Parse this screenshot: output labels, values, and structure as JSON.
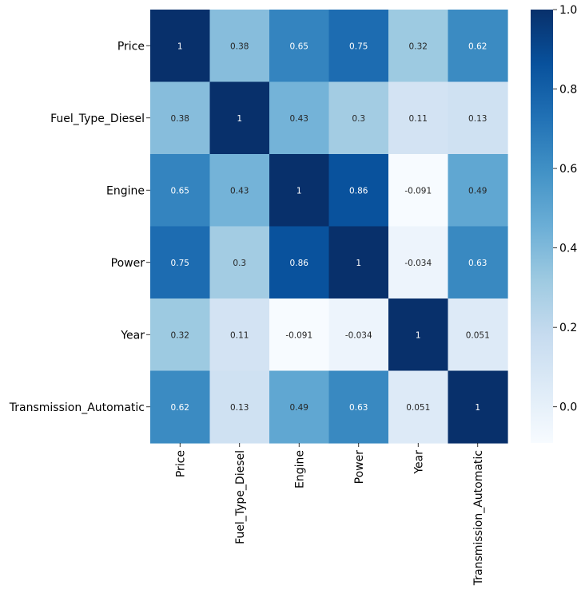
{
  "chart_data": {
    "type": "heatmap",
    "title": "",
    "xlabel": "",
    "ylabel": "",
    "rows": [
      "Price",
      "Fuel_Type_Diesel",
      "Engine",
      "Power",
      "Year",
      "Transmission_Automatic"
    ],
    "cols": [
      "Price",
      "Fuel_Type_Diesel",
      "Engine",
      "Power",
      "Year",
      "Transmission_Automatic"
    ],
    "values": [
      [
        1,
        0.38,
        0.65,
        0.75,
        0.32,
        0.62
      ],
      [
        0.38,
        1,
        0.43,
        0.3,
        0.11,
        0.13
      ],
      [
        0.65,
        0.43,
        1,
        0.86,
        -0.091,
        0.49
      ],
      [
        0.75,
        0.3,
        0.86,
        1,
        -0.034,
        0.63
      ],
      [
        0.32,
        0.11,
        -0.091,
        -0.034,
        1,
        0.051
      ],
      [
        0.62,
        0.13,
        0.49,
        0.63,
        0.051,
        1
      ]
    ],
    "annotations": [
      [
        "1",
        "0.38",
        "0.65",
        "0.75",
        "0.32",
        "0.62"
      ],
      [
        "0.38",
        "1",
        "0.43",
        "0.3",
        "0.11",
        "0.13"
      ],
      [
        "0.65",
        "0.43",
        "1",
        "0.86",
        "-0.091",
        "0.49"
      ],
      [
        "0.75",
        "0.3",
        "0.86",
        "1",
        "-0.034",
        "0.63"
      ],
      [
        "0.32",
        "0.11",
        "-0.091",
        "-0.034",
        "1",
        "0.051"
      ],
      [
        "0.62",
        "0.13",
        "0.49",
        "0.63",
        "0.051",
        "1"
      ]
    ],
    "colormap": "Blues",
    "vmin": -0.091,
    "vmax": 1,
    "colorbar": {
      "ticks": [
        0.0,
        0.2,
        0.4,
        0.6,
        0.8,
        1.0
      ],
      "tick_labels": [
        "0.0",
        "0.2",
        "0.4",
        "0.6",
        "0.8",
        "1.0"
      ]
    },
    "colors": {
      "stops": [
        "#f7fbff",
        "#deebf7",
        "#c6dbef",
        "#9ecae1",
        "#6baed6",
        "#4292c6",
        "#2171b5",
        "#08519c",
        "#08306b"
      ],
      "light_text": "#ffffff",
      "dark_text": "#262626"
    }
  }
}
